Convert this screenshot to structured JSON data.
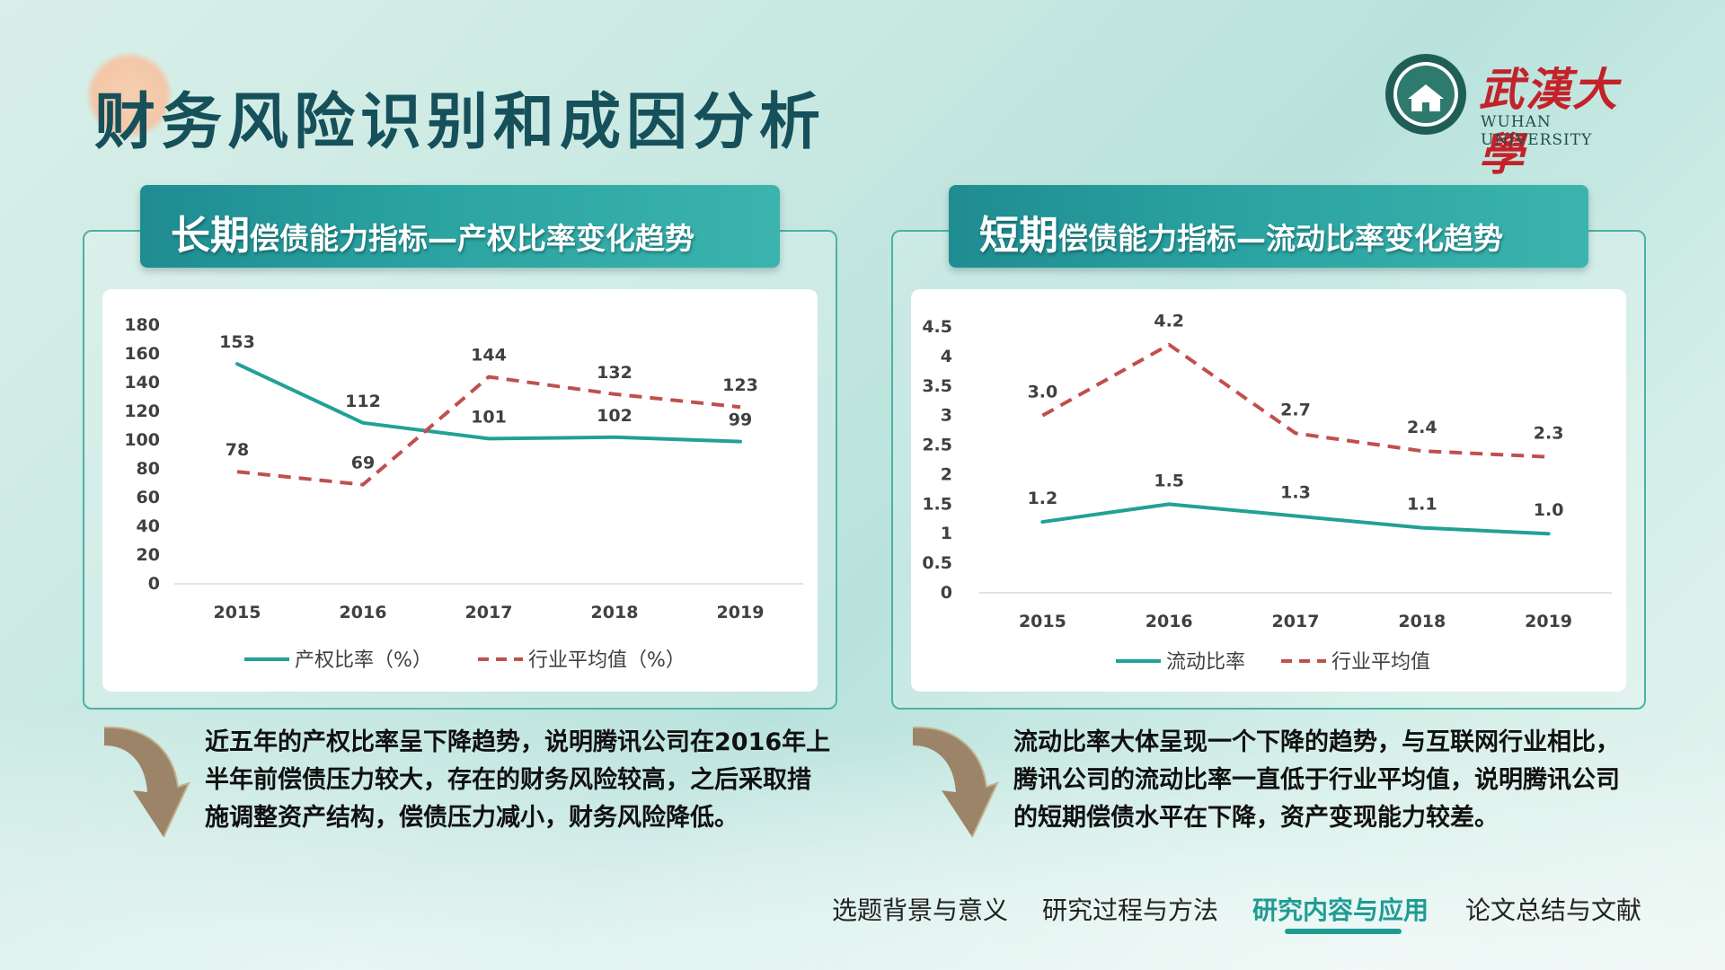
{
  "title": "财务风险识别和成因分析",
  "logo": {
    "name_cn": "武漢大學",
    "name_en": "WUHAN UNIVERSITY"
  },
  "panels": [
    {
      "header_big": "长期",
      "header_small": "偿债能力指标—产权比率变化趋势",
      "description": "近五年的产权比率呈下降趋势，说明腾讯公司在2016年上半年前偿债压力较大，存在的财务风险较高，之后采取措施调整资产结构，偿债压力减小，财务风险降低。"
    },
    {
      "header_big": "短期",
      "header_small": "偿债能力指标—流动比率变化趋势",
      "description": "流动比率大体呈现一个下降的趋势，与互联网行业相比，腾讯公司的流动比率一直低于行业平均值，说明腾讯公司的短期偿债水平在下降，资产变现能力较差。"
    }
  ],
  "chart_data": [
    {
      "type": "line",
      "categories": [
        "2015",
        "2016",
        "2017",
        "2018",
        "2019"
      ],
      "ylim": [
        0,
        180
      ],
      "yticks": [
        "0",
        "20",
        "40",
        "60",
        "80",
        "100",
        "120",
        "140",
        "160",
        "180"
      ],
      "grid": false,
      "legend_position": "bottom",
      "series": [
        {
          "name": "产权比率（%）",
          "values": [
            153,
            112,
            101,
            102,
            99
          ],
          "labels": [
            "153",
            "112",
            "101",
            "102",
            "99"
          ],
          "color": "#21a196",
          "dash": false
        },
        {
          "name": "行业平均值（%）",
          "values": [
            78,
            69,
            144,
            132,
            123
          ],
          "labels": [
            "78",
            "69",
            "144",
            "132",
            "123"
          ],
          "color": "#c0504d",
          "dash": true
        }
      ]
    },
    {
      "type": "line",
      "categories": [
        "2015",
        "2016",
        "2017",
        "2018",
        "2019"
      ],
      "ylim": [
        0,
        4.5
      ],
      "yticks": [
        "0",
        "0.5",
        "1",
        "1.5",
        "2",
        "2.5",
        "3",
        "3.5",
        "4",
        "4.5"
      ],
      "grid": false,
      "legend_position": "bottom",
      "series": [
        {
          "name": "流动比率",
          "values": [
            1.2,
            1.5,
            1.3,
            1.1,
            1.0
          ],
          "labels": [
            "1.2",
            "1.5",
            "1.3",
            "1.1",
            "1.0"
          ],
          "color": "#21a196",
          "dash": false
        },
        {
          "name": "行业平均值",
          "values": [
            3.0,
            4.2,
            2.7,
            2.4,
            2.3
          ],
          "labels": [
            "3.0",
            "4.2",
            "2.7",
            "2.4",
            "2.3"
          ],
          "color": "#c0504d",
          "dash": true
        }
      ]
    }
  ],
  "nav": [
    {
      "label": "选题背景与意义",
      "active": false
    },
    {
      "label": "研究过程与方法",
      "active": false
    },
    {
      "label": "研究内容与应用",
      "active": true
    },
    {
      "label": "论文总结与文献",
      "active": false
    }
  ],
  "colors": {
    "accent": "#1e9c94",
    "title": "#16505a",
    "series_solid": "#21a196",
    "series_dash": "#c0504d"
  }
}
